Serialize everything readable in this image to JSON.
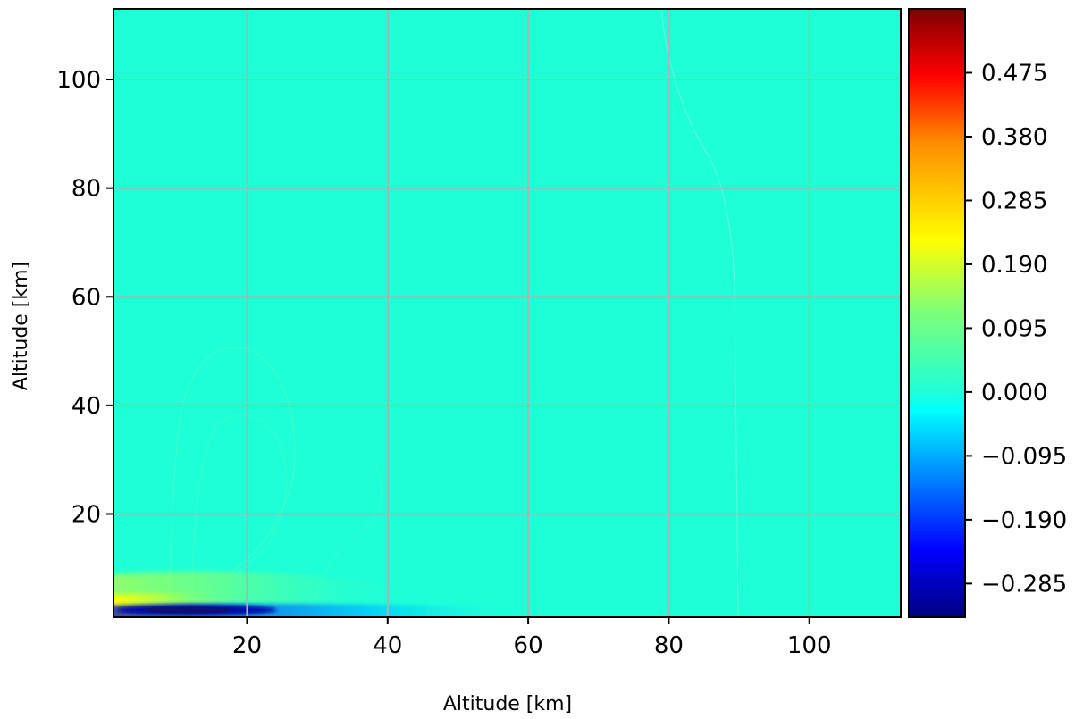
{
  "chart_data": {
    "type": "heatmap",
    "title": "",
    "xlabel": "Altitude [km]",
    "ylabel": "Altitude [km]",
    "xlim": [
      1,
      113
    ],
    "ylim": [
      1,
      113
    ],
    "x_ticks": [
      20,
      40,
      60,
      80,
      100
    ],
    "y_ticks": [
      20,
      40,
      60,
      80,
      100
    ],
    "grid": true,
    "colormap": "jet",
    "colorbar": {
      "vmin": -0.335,
      "vmax": 0.57,
      "ticks": [
        -0.285,
        -0.19,
        -0.095,
        0.0,
        0.095,
        0.19,
        0.285,
        0.38,
        0.475
      ],
      "tick_labels": [
        "−0.285",
        "−0.190",
        "−0.095",
        "0.000",
        "0.095",
        "0.190",
        "0.285",
        "0.380",
        "0.475"
      ]
    },
    "background_value": 0.0,
    "features": [
      {
        "kind": "positive-band",
        "x_range": [
          1,
          40
        ],
        "y_center": 6,
        "peak_value": 0.3
      },
      {
        "kind": "negative-band",
        "x_range": [
          5,
          60
        ],
        "y_center": 2.5,
        "peak_value": -0.33
      },
      {
        "kind": "weak-positive-lobe",
        "x_range": [
          10,
          40
        ],
        "y_range": [
          10,
          50
        ],
        "peak_value": 0.01
      }
    ]
  }
}
